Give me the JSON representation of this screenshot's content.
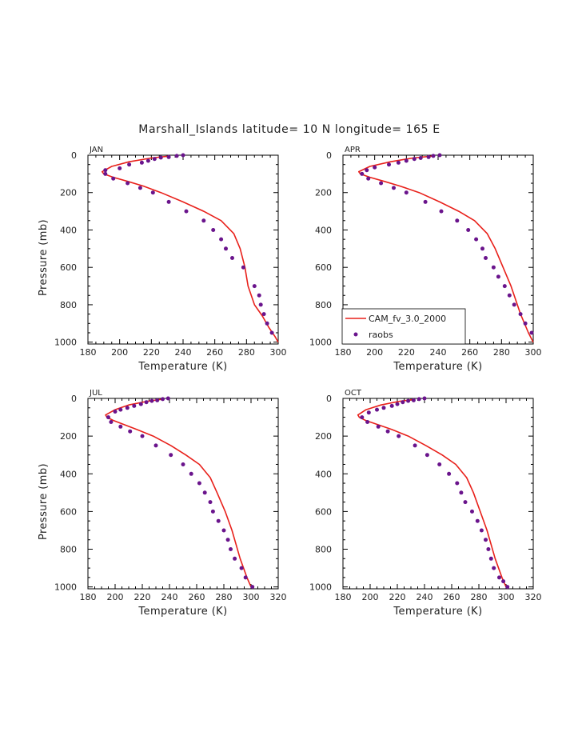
{
  "title": "Marshall_Islands  latitude= 10 N longitude= 165 E",
  "colors": {
    "model_line": "#e8201a",
    "obs_points": "#6a148c"
  },
  "legend": {
    "model": "CAM_fv_3.0_2000",
    "obs": "raobs"
  },
  "chart_data": [
    {
      "type": "line",
      "panel": "JAN",
      "xlabel": "Temperature (K)",
      "ylabel": "Pressure (mb)",
      "xlim": [
        180,
        300
      ],
      "ylim": [
        1010,
        0
      ],
      "xticks": [
        180,
        200,
        220,
        240,
        260,
        280,
        300
      ],
      "yticks": [
        0,
        200,
        400,
        600,
        800,
        1000
      ],
      "show_ylabel": true,
      "show_legend": false,
      "series": [
        {
          "name": "CAM_fv_3.0_2000",
          "kind": "line",
          "temperature": [
            231,
            220,
            206,
            195,
            189,
            190,
            196,
            205,
            215,
            226,
            240,
            253,
            264,
            272,
            276,
            279,
            281,
            285,
            290,
            294,
            298,
            300
          ],
          "pressure": [
            5,
            15,
            35,
            60,
            88,
            100,
            118,
            140,
            165,
            200,
            250,
            300,
            350,
            420,
            500,
            600,
            700,
            800,
            860,
            920,
            970,
            1000
          ]
        },
        {
          "name": "raobs",
          "kind": "points",
          "temperature": [
            240,
            236,
            231,
            226,
            222,
            218,
            214,
            206,
            200,
            191,
            191,
            196,
            205,
            213,
            221,
            231,
            242,
            253,
            259,
            264,
            267,
            271,
            278,
            285,
            288,
            289,
            291,
            293,
            296
          ],
          "pressure": [
            0,
            4,
            10,
            13,
            20,
            30,
            40,
            50,
            70,
            80,
            100,
            125,
            150,
            175,
            200,
            250,
            300,
            350,
            400,
            450,
            500,
            550,
            600,
            700,
            750,
            800,
            850,
            900,
            950
          ]
        }
      ]
    },
    {
      "type": "line",
      "panel": "APR",
      "xlabel": "Temperature (K)",
      "ylabel": "Pressure (mb)",
      "xlim": [
        180,
        300
      ],
      "ylim": [
        1010,
        0
      ],
      "xticks": [
        180,
        200,
        220,
        240,
        260,
        280,
        300
      ],
      "yticks": [
        0,
        200,
        400,
        600,
        800,
        1000
      ],
      "show_ylabel": false,
      "show_legend": true,
      "series": [
        {
          "name": "CAM_fv_3.0_2000",
          "kind": "line",
          "temperature": [
            236,
            224,
            210,
            197,
            190,
            191,
            197,
            206,
            216,
            228,
            241,
            253,
            263,
            271,
            276,
            281,
            286,
            292,
            297,
            300
          ],
          "pressure": [
            5,
            15,
            35,
            60,
            88,
            100,
            118,
            140,
            165,
            200,
            250,
            300,
            350,
            420,
            500,
            600,
            700,
            850,
            950,
            1000
          ]
        },
        {
          "name": "raobs",
          "kind": "points",
          "temperature": [
            241,
            237,
            234,
            229,
            225,
            220,
            215,
            209,
            200,
            195,
            192,
            196,
            204,
            212,
            220,
            232,
            242,
            252,
            259,
            264,
            268,
            270,
            275,
            278,
            282,
            285,
            288,
            292,
            295,
            299
          ],
          "pressure": [
            0,
            4,
            10,
            15,
            20,
            30,
            40,
            50,
            65,
            80,
            100,
            125,
            150,
            175,
            200,
            250,
            300,
            350,
            400,
            450,
            500,
            550,
            600,
            650,
            700,
            750,
            800,
            850,
            900,
            950
          ]
        }
      ]
    },
    {
      "type": "line",
      "panel": "JUL",
      "xlabel": "Temperature (K)",
      "ylabel": "Pressure (mb)",
      "xlim": [
        180,
        320
      ],
      "ylim": [
        1010,
        0
      ],
      "xticks": [
        180,
        200,
        220,
        240,
        260,
        280,
        300,
        320
      ],
      "yticks": [
        0,
        200,
        400,
        600,
        800,
        1000
      ],
      "show_ylabel": true,
      "show_legend": false,
      "series": [
        {
          "name": "CAM_fv_3.0_2000",
          "kind": "line",
          "temperature": [
            234,
            224,
            210,
            200,
            193,
            194,
            199,
            207,
            216,
            228,
            241,
            252,
            262,
            270,
            275,
            281,
            286,
            292,
            297,
            300
          ],
          "pressure": [
            5,
            15,
            35,
            60,
            88,
            100,
            118,
            140,
            165,
            200,
            250,
            300,
            350,
            420,
            500,
            600,
            700,
            850,
            950,
            1000
          ]
        },
        {
          "name": "raobs",
          "kind": "points",
          "temperature": [
            239,
            235,
            231,
            227,
            223,
            219,
            214,
            209,
            204,
            200,
            195,
            197,
            204,
            211,
            220,
            230,
            241,
            250,
            256,
            262,
            266,
            270,
            272,
            276,
            280,
            283,
            285,
            288,
            293,
            296,
            301
          ],
          "pressure": [
            0,
            4,
            10,
            13,
            20,
            30,
            40,
            50,
            60,
            70,
            100,
            125,
            150,
            175,
            200,
            250,
            300,
            350,
            400,
            450,
            500,
            550,
            600,
            650,
            700,
            750,
            800,
            850,
            900,
            950,
            1000
          ]
        }
      ]
    },
    {
      "type": "line",
      "panel": "OCT",
      "xlabel": "Temperature (K)",
      "ylabel": "Pressure (mb)",
      "xlim": [
        180,
        320
      ],
      "ylim": [
        1010,
        0
      ],
      "xticks": [
        180,
        200,
        220,
        240,
        260,
        280,
        300,
        320
      ],
      "yticks": [
        0,
        200,
        400,
        600,
        800,
        1000
      ],
      "show_ylabel": false,
      "show_legend": false,
      "series": [
        {
          "name": "CAM_fv_3.0_2000",
          "kind": "line",
          "temperature": [
            233,
            222,
            208,
            197,
            191,
            192,
            197,
            206,
            216,
            228,
            241,
            253,
            263,
            271,
            276,
            281,
            286,
            292,
            297,
            300
          ],
          "pressure": [
            5,
            15,
            35,
            60,
            88,
            100,
            118,
            140,
            165,
            200,
            250,
            300,
            350,
            420,
            500,
            600,
            700,
            850,
            950,
            1000
          ]
        },
        {
          "name": "raobs",
          "kind": "points",
          "temperature": [
            240,
            236,
            232,
            228,
            224,
            220,
            216,
            210,
            205,
            199,
            194,
            198,
            206,
            213,
            221,
            233,
            242,
            251,
            258,
            264,
            267,
            270,
            275,
            279,
            282,
            285,
            287,
            289,
            291,
            295,
            298,
            301
          ],
          "pressure": [
            0,
            4,
            10,
            13,
            20,
            30,
            40,
            50,
            60,
            75,
            100,
            125,
            150,
            175,
            200,
            250,
            300,
            350,
            400,
            450,
            500,
            550,
            600,
            650,
            700,
            750,
            800,
            850,
            900,
            950,
            970,
            1000
          ]
        }
      ]
    }
  ]
}
